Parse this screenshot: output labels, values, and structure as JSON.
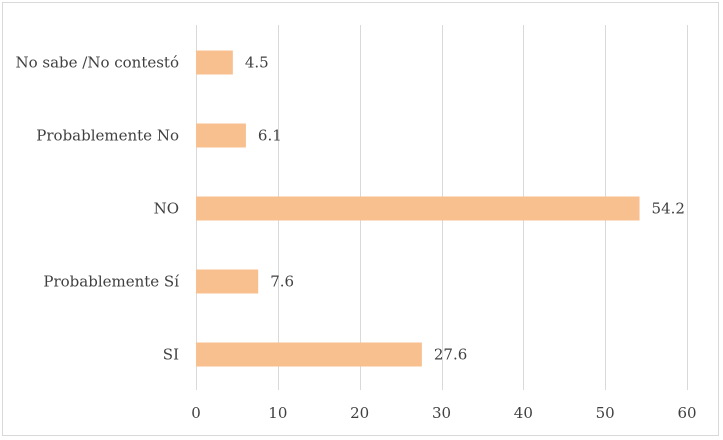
{
  "chart_data": {
    "type": "bar",
    "orientation": "horizontal",
    "categories": [
      "No sabe /No contestó",
      "Probablemente No",
      "NO",
      "Probablemente Sí",
      "SI"
    ],
    "values": [
      4.5,
      6.1,
      54.2,
      7.6,
      27.6
    ],
    "data_labels": [
      "4.5",
      "6.1",
      "54.2",
      "7.6",
      "27.6"
    ],
    "xticks": [
      "0",
      "10",
      "20",
      "30",
      "40",
      "50",
      "60"
    ],
    "xlim": [
      0,
      60
    ],
    "title": "",
    "xlabel": "",
    "ylabel": "",
    "grid": true,
    "legend": "none",
    "bar_color": "#F8BF8F",
    "grid_color": "#D9D9D9",
    "text_color": "#404040"
  }
}
